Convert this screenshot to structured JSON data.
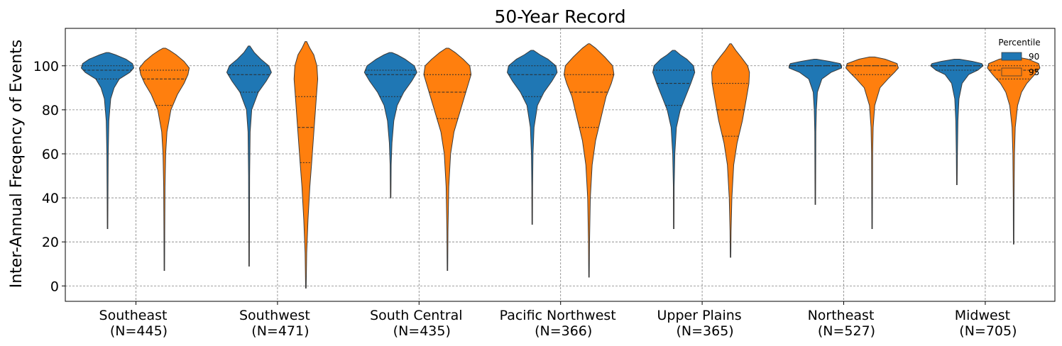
{
  "chart_data": {
    "type": "violin",
    "title": "50-Year Record",
    "xlabel": "",
    "ylabel": "Inter-Annual Freqency of Events",
    "ylim": [
      -7,
      117
    ],
    "yticks": [
      0,
      20,
      40,
      60,
      80,
      100
    ],
    "grid": true,
    "categories": [
      {
        "label_line1": "Southeast",
        "label_line2": "(N=445)"
      },
      {
        "label_line1": "Southwest",
        "label_line2": "(N=471)"
      },
      {
        "label_line1": "South Central",
        "label_line2": "(N=435)"
      },
      {
        "label_line1": "Pacific Northwest",
        "label_line2": "(N=366)"
      },
      {
        "label_line1": "Upper Plains",
        "label_line2": "(N=365)"
      },
      {
        "label_line1": "Northeast",
        "label_line2": "(N=527)"
      },
      {
        "label_line1": "Midwest",
        "label_line2": "(N=705)"
      }
    ],
    "legend": {
      "title": "Percentile",
      "placement": "top-right"
    },
    "series": [
      {
        "name": "90",
        "color": "#1f77b4",
        "violins": [
          {
            "min": 26,
            "max": 106,
            "quartiles": [
              94,
              98,
              100
            ],
            "profile": [
              [
                26,
                0.01
              ],
              [
                40,
                0.015
              ],
              [
                60,
                0.025
              ],
              [
                75,
                0.05
              ],
              [
                85,
                0.12
              ],
              [
                90,
                0.25
              ],
              [
                94,
                0.45
              ],
              [
                97,
                0.85
              ],
              [
                99,
                1.0
              ],
              [
                101,
                0.95
              ],
              [
                103,
                0.7
              ],
              [
                105,
                0.3
              ],
              [
                106,
                0.05
              ]
            ]
          },
          {
            "min": 9,
            "max": 109,
            "quartiles": [
              88,
              96,
              100
            ],
            "profile": [
              [
                9,
                0.01
              ],
              [
                30,
                0.015
              ],
              [
                50,
                0.02
              ],
              [
                70,
                0.04
              ],
              [
                80,
                0.1
              ],
              [
                88,
                0.35
              ],
              [
                93,
                0.65
              ],
              [
                97,
                0.85
              ],
              [
                100,
                0.75
              ],
              [
                103,
                0.45
              ],
              [
                106,
                0.2
              ],
              [
                109,
                0.03
              ]
            ]
          },
          {
            "min": 40,
            "max": 106,
            "quartiles": [
              86,
              96,
              98
            ],
            "profile": [
              [
                40,
                0.01
              ],
              [
                55,
                0.02
              ],
              [
                65,
                0.05
              ],
              [
                75,
                0.12
              ],
              [
                82,
                0.25
              ],
              [
                88,
                0.5
              ],
              [
                93,
                0.8
              ],
              [
                97,
                1.0
              ],
              [
                100,
                0.9
              ],
              [
                103,
                0.55
              ],
              [
                105,
                0.25
              ],
              [
                106,
                0.05
              ]
            ]
          },
          {
            "min": 28,
            "max": 107,
            "quartiles": [
              86,
              96,
              100
            ],
            "profile": [
              [
                28,
                0.01
              ],
              [
                45,
                0.015
              ],
              [
                60,
                0.03
              ],
              [
                72,
                0.07
              ],
              [
                82,
                0.2
              ],
              [
                88,
                0.45
              ],
              [
                93,
                0.75
              ],
              [
                97,
                0.95
              ],
              [
                100,
                0.9
              ],
              [
                103,
                0.6
              ],
              [
                105,
                0.3
              ],
              [
                107,
                0.05
              ]
            ]
          },
          {
            "min": 26,
            "max": 107,
            "quartiles": [
              82,
              92,
              98
            ],
            "profile": [
              [
                26,
                0.01
              ],
              [
                45,
                0.015
              ],
              [
                60,
                0.04
              ],
              [
                72,
                0.1
              ],
              [
                80,
                0.25
              ],
              [
                86,
                0.45
              ],
              [
                92,
                0.65
              ],
              [
                97,
                0.8
              ],
              [
                100,
                0.75
              ],
              [
                103,
                0.5
              ],
              [
                105,
                0.25
              ],
              [
                107,
                0.05
              ]
            ]
          },
          {
            "min": 37,
            "max": 103,
            "quartiles": [
              100,
              100,
              100
            ],
            "profile": [
              [
                37,
                0.01
              ],
              [
                55,
                0.015
              ],
              [
                70,
                0.02
              ],
              [
                80,
                0.04
              ],
              [
                88,
                0.08
              ],
              [
                94,
                0.25
              ],
              [
                97,
                0.6
              ],
              [
                99,
                1.0
              ],
              [
                100,
                1.0
              ],
              [
                101,
                0.95
              ],
              [
                102,
                0.55
              ],
              [
                103,
                0.05
              ]
            ]
          },
          {
            "min": 46,
            "max": 103,
            "quartiles": [
              98,
              100,
              100
            ],
            "profile": [
              [
                46,
                0.01
              ],
              [
                60,
                0.02
              ],
              [
                75,
                0.04
              ],
              [
                85,
                0.08
              ],
              [
                92,
                0.2
              ],
              [
                96,
                0.45
              ],
              [
                98,
                0.8
              ],
              [
                100,
                1.0
              ],
              [
                101,
                0.95
              ],
              [
                102,
                0.6
              ],
              [
                103,
                0.1
              ]
            ]
          }
        ]
      },
      {
        "name": "95",
        "color": "#ff7f0e",
        "violins": [
          {
            "min": 7,
            "max": 108,
            "quartiles": [
              82,
              94,
              98
            ],
            "profile": [
              [
                7,
                0.01
              ],
              [
                25,
                0.015
              ],
              [
                45,
                0.025
              ],
              [
                60,
                0.05
              ],
              [
                70,
                0.1
              ],
              [
                80,
                0.25
              ],
              [
                87,
                0.5
              ],
              [
                92,
                0.75
              ],
              [
                96,
                0.9
              ],
              [
                99,
                0.95
              ],
              [
                102,
                0.75
              ],
              [
                105,
                0.45
              ],
              [
                107,
                0.2
              ],
              [
                108,
                0.05
              ]
            ]
          },
          {
            "min": -1,
            "max": 111,
            "quartiles": [
              56,
              72,
              86
            ],
            "profile": [
              [
                -1,
                0.01
              ],
              [
                15,
                0.03
              ],
              [
                30,
                0.08
              ],
              [
                45,
                0.15
              ],
              [
                56,
                0.22
              ],
              [
                66,
                0.28
              ],
              [
                76,
                0.34
              ],
              [
                86,
                0.4
              ],
              [
                94,
                0.45
              ],
              [
                100,
                0.42
              ],
              [
                105,
                0.3
              ],
              [
                108,
                0.15
              ],
              [
                111,
                0.03
              ]
            ]
          },
          {
            "min": 7,
            "max": 108,
            "quartiles": [
              76,
              88,
              96
            ],
            "profile": [
              [
                7,
                0.01
              ],
              [
                25,
                0.02
              ],
              [
                45,
                0.05
              ],
              [
                60,
                0.12
              ],
              [
                70,
                0.25
              ],
              [
                78,
                0.45
              ],
              [
                86,
                0.65
              ],
              [
                92,
                0.8
              ],
              [
                96,
                0.9
              ],
              [
                100,
                0.85
              ],
              [
                103,
                0.6
              ],
              [
                106,
                0.3
              ],
              [
                108,
                0.05
              ]
            ]
          },
          {
            "min": 4,
            "max": 110,
            "quartiles": [
              72,
              88,
              96
            ],
            "profile": [
              [
                4,
                0.01
              ],
              [
                20,
                0.02
              ],
              [
                40,
                0.05
              ],
              [
                55,
                0.12
              ],
              [
                66,
                0.25
              ],
              [
                76,
                0.45
              ],
              [
                86,
                0.65
              ],
              [
                92,
                0.85
              ],
              [
                96,
                0.95
              ],
              [
                100,
                0.9
              ],
              [
                104,
                0.6
              ],
              [
                108,
                0.25
              ],
              [
                110,
                0.03
              ]
            ]
          },
          {
            "min": 13,
            "max": 110,
            "quartiles": [
              68,
              80,
              92
            ],
            "profile": [
              [
                13,
                0.01
              ],
              [
                25,
                0.02
              ],
              [
                40,
                0.05
              ],
              [
                55,
                0.12
              ],
              [
                65,
                0.25
              ],
              [
                75,
                0.45
              ],
              [
                85,
                0.6
              ],
              [
                92,
                0.7
              ],
              [
                97,
                0.72
              ],
              [
                100,
                0.65
              ],
              [
                104,
                0.4
              ],
              [
                107,
                0.2
              ],
              [
                110,
                0.03
              ]
            ]
          },
          {
            "min": 26,
            "max": 104,
            "quartiles": [
              96,
              100,
              100
            ],
            "profile": [
              [
                26,
                0.01
              ],
              [
                45,
                0.015
              ],
              [
                60,
                0.02
              ],
              [
                72,
                0.04
              ],
              [
                82,
                0.1
              ],
              [
                90,
                0.3
              ],
              [
                94,
                0.6
              ],
              [
                97,
                0.85
              ],
              [
                99,
                1.0
              ],
              [
                101,
                0.95
              ],
              [
                103,
                0.5
              ],
              [
                104,
                0.1
              ]
            ]
          },
          {
            "min": 19,
            "max": 104,
            "quartiles": [
              94,
              98,
              100
            ],
            "profile": [
              [
                19,
                0.01
              ],
              [
                40,
                0.015
              ],
              [
                60,
                0.03
              ],
              [
                72,
                0.06
              ],
              [
                82,
                0.15
              ],
              [
                88,
                0.3
              ],
              [
                92,
                0.5
              ],
              [
                96,
                0.8
              ],
              [
                99,
                1.0
              ],
              [
                101,
                0.95
              ],
              [
                103,
                0.55
              ],
              [
                104,
                0.1
              ]
            ]
          }
        ]
      }
    ]
  }
}
